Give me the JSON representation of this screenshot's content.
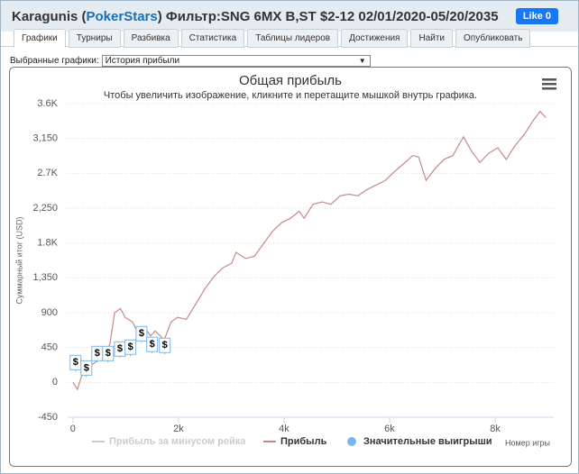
{
  "header": {
    "parts": [
      "Karagunis (",
      "PokerStars",
      ") Фильтр:SNG 6MX B,ST $2-12 02/01/2020-05/20/2035"
    ],
    "like": "Like 0"
  },
  "tabs": [
    "Графики",
    "Турниры",
    "Разбивка",
    "Статистика",
    "Таблицы лидеров",
    "Достижения",
    "Найти",
    "Опубликовать"
  ],
  "selector": {
    "label": "Выбранные графики:",
    "value": "История прибыли"
  },
  "chart_data": {
    "type": "line",
    "title": "Общая прибыль",
    "subtitle": "Чтобы увеличить изображение, кликните и перетащите мышкой внутрь графика.",
    "y_label": "Суммарный итог (USD)",
    "x_label": "Номер игры",
    "xlim": [
      -100,
      9110
    ],
    "ylim": [
      -450,
      3600
    ],
    "xticks": [
      0,
      {
        "value": 2000,
        "label": "2k"
      },
      {
        "value": 4000,
        "label": "4k"
      },
      {
        "value": 6000,
        "label": "6k"
      },
      {
        "value": 8000,
        "label": "8k"
      }
    ],
    "yticks": [
      {
        "value": 3600,
        "label": "3.6K"
      },
      {
        "value": 3150,
        "label": "3,150"
      },
      {
        "value": 2700,
        "label": "2.7K"
      },
      {
        "value": 2250,
        "label": "2,250"
      },
      {
        "value": 1800,
        "label": "1.8K"
      },
      {
        "value": 1350,
        "label": "1,350"
      },
      900,
      450,
      0,
      -450
    ],
    "grid": true,
    "series": [
      {
        "name": "Прибыль за минусом рейка",
        "color": "#cccccc",
        "x": [],
        "values": []
      },
      {
        "name": "Прибыль",
        "color": "#c48a8a",
        "x": [
          0,
          85,
          220,
          360,
          530,
          700,
          790,
          900,
          990,
          1130,
          1210,
          1350,
          1470,
          1560,
          1730,
          1860,
          1980,
          2150,
          2330,
          2500,
          2670,
          2840,
          3010,
          3090,
          3270,
          3440,
          3610,
          3780,
          3950,
          4120,
          4290,
          4380,
          4550,
          4720,
          4890,
          5060,
          5230,
          5400,
          5570,
          5750,
          5920,
          6090,
          6260,
          6440,
          6550,
          6690,
          6860,
          7030,
          7200,
          7280,
          7400,
          7540,
          7710,
          7880,
          8050,
          8210,
          8380,
          8550,
          8720,
          8850,
          8960
        ],
        "values": [
          0,
          -90,
          200,
          230,
          315,
          490,
          900,
          955,
          840,
          780,
          665,
          720,
          600,
          665,
          550,
          780,
          840,
          815,
          1015,
          1210,
          1365,
          1480,
          1540,
          1680,
          1600,
          1630,
          1790,
          1950,
          2060,
          2120,
          2210,
          2120,
          2300,
          2330,
          2300,
          2410,
          2430,
          2410,
          2490,
          2550,
          2610,
          2720,
          2820,
          2930,
          2910,
          2610,
          2760,
          2880,
          2930,
          3030,
          3170,
          3000,
          2840,
          2960,
          3030,
          2880,
          3060,
          3200,
          3380,
          3500,
          3420
        ]
      },
      {
        "name": "Значительные выигрыши",
        "color": "#7cb5ec",
        "marker": "$",
        "x": [
          50,
          255,
          460,
          665,
          890,
          1090,
          1300,
          1500,
          1740
        ],
        "values": [
          256,
          186,
          373,
          373,
          431,
          455,
          629,
          490,
          478
        ]
      }
    ]
  }
}
